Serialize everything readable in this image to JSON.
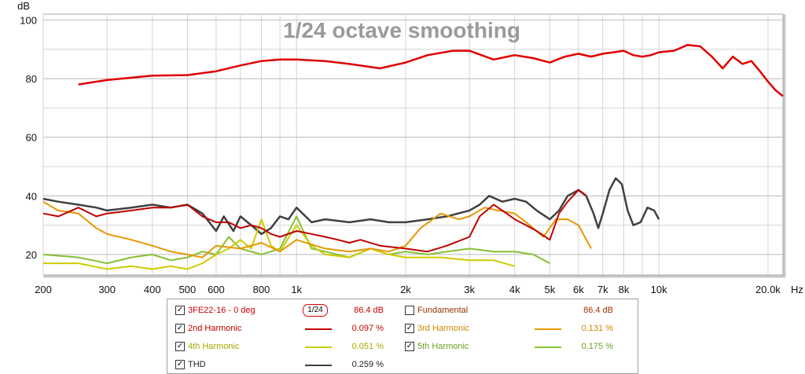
{
  "chart_data": {
    "type": "line",
    "title": "1/24 octave smoothing",
    "ylabel": "dB",
    "xlabel": "Hz",
    "xscale": "log",
    "xlim": [
      200,
      22000
    ],
    "ylim": [
      13,
      102
    ],
    "grid": true,
    "x_ticks": [
      200,
      300,
      400,
      500,
      600,
      800,
      1000,
      2000,
      3000,
      4000,
      5000,
      6000,
      7000,
      8000,
      10000,
      20000
    ],
    "x_tick_labels": [
      "200",
      "300",
      "400",
      "500",
      "600",
      "800",
      "1k",
      "2k",
      "3k",
      "4k",
      "5k",
      "6k",
      "7k",
      "8k",
      "10k",
      "20.0k"
    ],
    "y_ticks": [
      20,
      40,
      60,
      80,
      100
    ],
    "y_tick_labels": [
      "20",
      "40",
      "60",
      "80",
      "100"
    ],
    "series": [
      {
        "name": "3FE22-16 - 0 deg",
        "color": "#e00000",
        "x": [
          250,
          300,
          400,
          500,
          600,
          700,
          800,
          900,
          1000,
          1200,
          1400,
          1700,
          2000,
          2300,
          2700,
          3000,
          3500,
          4000,
          4500,
          5000,
          5500,
          6000,
          6500,
          7000,
          7500,
          8000,
          8500,
          9000,
          9500,
          10000,
          11000,
          12000,
          13000,
          14000,
          15000,
          16000,
          17000,
          18000,
          19000,
          20000,
          21000,
          22000
        ],
        "y": [
          78,
          79.5,
          81,
          81.2,
          82.5,
          84.5,
          86,
          86.5,
          86.5,
          86,
          85,
          83.5,
          85.5,
          88,
          89.5,
          89.5,
          86.5,
          88,
          87,
          85.5,
          87.5,
          88.5,
          87.5,
          88.5,
          89,
          89.5,
          88,
          87.5,
          88,
          89,
          89.5,
          91.5,
          91,
          87.5,
          83.5,
          87.5,
          85,
          86,
          82.5,
          79,
          76,
          74
        ]
      },
      {
        "name": "2nd Harmonic",
        "color": "#c00000",
        "x": [
          200,
          220,
          250,
          280,
          300,
          350,
          400,
          450,
          500,
          550,
          600,
          650,
          700,
          750,
          800,
          850,
          900,
          1000,
          1100,
          1200,
          1300,
          1400,
          1500,
          1700,
          2000,
          2300,
          2600,
          3000,
          3200,
          3500,
          3800,
          4000,
          4300,
          4600,
          5000,
          5300,
          5600,
          6000,
          6300
        ],
        "y": [
          34,
          33,
          36,
          33,
          34,
          35,
          36,
          36,
          37,
          33,
          31,
          31,
          29,
          30,
          29,
          27,
          26,
          28,
          27,
          26,
          25,
          24,
          25,
          23,
          22,
          21,
          23,
          26,
          33,
          37,
          34,
          32,
          30,
          28,
          25,
          34,
          38,
          42,
          40
        ]
      },
      {
        "name": "3rd Harmonic",
        "color": "#e69800",
        "x": [
          200,
          220,
          250,
          280,
          300,
          350,
          400,
          450,
          500,
          550,
          600,
          700,
          800,
          900,
          1000,
          1200,
          1400,
          1600,
          1800,
          2000,
          2200,
          2500,
          2800,
          3000,
          3300,
          3600,
          4000,
          4400,
          4800,
          5200,
          5600,
          6000,
          6500
        ],
        "y": [
          38,
          35,
          34,
          29,
          27,
          25,
          23,
          21,
          20,
          19,
          23,
          22,
          24,
          21,
          25,
          22,
          21,
          22,
          21,
          23,
          29,
          34,
          32,
          33,
          36,
          35,
          34,
          30,
          26,
          32,
          32,
          30,
          22
        ]
      },
      {
        "name": "4th Harmonic",
        "color": "#cccc00",
        "x": [
          200,
          250,
          300,
          350,
          400,
          450,
          500,
          550,
          600,
          650,
          700,
          750,
          800,
          850,
          900,
          1000,
          1100,
          1200,
          1400,
          1600,
          1800,
          2000,
          2500,
          3000,
          3500,
          4000
        ],
        "y": [
          17,
          17,
          15,
          16,
          15,
          16,
          15,
          17,
          20,
          22,
          25,
          22,
          32,
          23,
          21,
          30,
          23,
          20,
          19,
          22,
          20,
          19,
          19,
          18,
          18,
          16
        ]
      },
      {
        "name": "5th Harmonic",
        "color": "#88c030",
        "x": [
          200,
          250,
          300,
          350,
          400,
          450,
          500,
          550,
          600,
          650,
          700,
          800,
          900,
          1000,
          1100,
          1200,
          1400,
          1600,
          1800,
          2000,
          2300,
          2600,
          3000,
          3500,
          4000,
          4500,
          5000
        ],
        "y": [
          20,
          19,
          17,
          19,
          20,
          18,
          19,
          21,
          20,
          26,
          22,
          20,
          22,
          33,
          22,
          21,
          19,
          22,
          20,
          21,
          20,
          21,
          22,
          21,
          21,
          20,
          17
        ]
      },
      {
        "name": "THD",
        "color": "#404040",
        "x": [
          200,
          220,
          250,
          280,
          300,
          350,
          400,
          450,
          500,
          550,
          600,
          630,
          670,
          700,
          750,
          800,
          850,
          900,
          950,
          1000,
          1100,
          1200,
          1400,
          1600,
          1800,
          2000,
          2300,
          2600,
          3000,
          3200,
          3400,
          3700,
          4000,
          4300,
          4600,
          5000,
          5300,
          5600,
          6000,
          6300,
          6600,
          6800,
          7000,
          7300,
          7600,
          7900,
          8200,
          8500,
          8900,
          9300,
          9700,
          10000
        ],
        "y": [
          39,
          38,
          37,
          36,
          35,
          36,
          37,
          36,
          37,
          34,
          28,
          33,
          28,
          33,
          30,
          27,
          29,
          33,
          32,
          36,
          31,
          32,
          31,
          32,
          31,
          31,
          32,
          33,
          35,
          37,
          40,
          38,
          39,
          38,
          35,
          32,
          35,
          40,
          42,
          40,
          34,
          29,
          34,
          42,
          46,
          44,
          35,
          30,
          31,
          36,
          35,
          32
        ]
      }
    ]
  },
  "legend": {
    "rows": [
      [
        {
          "checked": true,
          "name": "3FE22-16 - 0 deg",
          "value": "86.4 dB",
          "line_color": "#e00000",
          "text_color": "#cc0000",
          "smoothing": "1/24"
        },
        {
          "checked": false,
          "name": "Fundamental",
          "value": "86.4 dB",
          "line_color": "",
          "text_color": "#993300"
        }
      ],
      [
        {
          "checked": true,
          "name": "2nd Harmonic",
          "value": "0.097 %",
          "line_color": "#c00000",
          "text_color": "#c00000"
        },
        {
          "checked": true,
          "name": "3rd Harmonic",
          "value": "0.131 %",
          "line_color": "#e69800",
          "text_color": "#cc8800"
        }
      ],
      [
        {
          "checked": true,
          "name": "4th Harmonic",
          "value": "0.051 %",
          "line_color": "#cccc00",
          "text_color": "#a8a800"
        },
        {
          "checked": true,
          "name": "5th Harmonic",
          "value": "0.175 %",
          "line_color": "#88c030",
          "text_color": "#6aa020"
        }
      ],
      [
        {
          "checked": true,
          "name": "THD",
          "value": "0.259 %",
          "line_color": "#404040",
          "text_color": "#222222"
        }
      ]
    ],
    "check_mark": "✓"
  }
}
